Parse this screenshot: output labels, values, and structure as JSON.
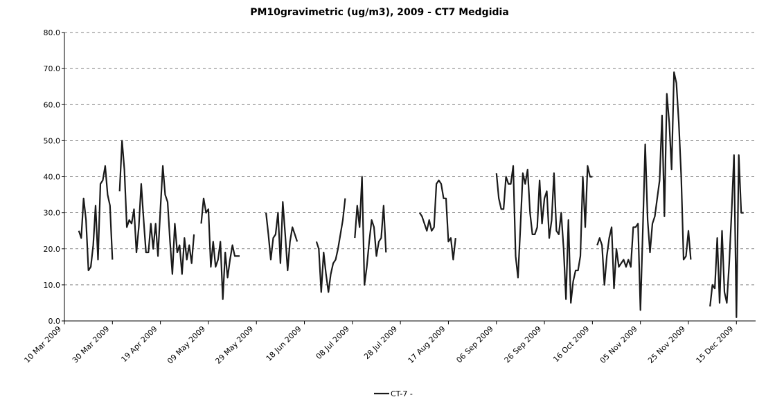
{
  "chart_data": {
    "type": "line",
    "title": "PM10gravimetric (ug/m3), 2009 - CT7 Medgidia",
    "xlim": [
      "2009-03-10",
      "2009-12-23"
    ],
    "xticks": [
      {
        "value": "2009-03-10",
        "label": "10 Mar 2009"
      },
      {
        "value": "2009-03-30",
        "label": "30 Mar 2009"
      },
      {
        "value": "2009-04-19",
        "label": "19 Apr 2009"
      },
      {
        "value": "2009-05-09",
        "label": "09 May 2009"
      },
      {
        "value": "2009-05-29",
        "label": "29 May 2009"
      },
      {
        "value": "2009-06-18",
        "label": "18 Jun 2009"
      },
      {
        "value": "2009-07-08",
        "label": "08 Jul 2009"
      },
      {
        "value": "2009-07-28",
        "label": "28 Jul 2009"
      },
      {
        "value": "2009-08-17",
        "label": "17 Aug 2009"
      },
      {
        "value": "2009-09-06",
        "label": "06 Sep 2009"
      },
      {
        "value": "2009-09-26",
        "label": "26 Sep 2009"
      },
      {
        "value": "2009-10-16",
        "label": "16 Oct 2009"
      },
      {
        "value": "2009-11-05",
        "label": "05 Nov 2009"
      },
      {
        "value": "2009-11-25",
        "label": "25 Nov 2009"
      },
      {
        "value": "2009-12-15",
        "label": "15 Dec 2009"
      }
    ],
    "ylim": [
      0,
      80
    ],
    "yticks": [
      {
        "value": 0,
        "label": "0.0"
      },
      {
        "value": 10,
        "label": "10.0"
      },
      {
        "value": 20,
        "label": "20.0"
      },
      {
        "value": 30,
        "label": "30.0"
      },
      {
        "value": 40,
        "label": "40.0"
      },
      {
        "value": 50,
        "label": "50.0"
      },
      {
        "value": 60,
        "label": "60.0"
      },
      {
        "value": 70,
        "label": "70.0"
      },
      {
        "value": 80,
        "label": "80.0"
      }
    ],
    "grid": true,
    "legend": "bottom",
    "x": [
      "2009-03-16",
      "2009-03-17",
      "2009-03-18",
      "2009-03-19",
      "2009-03-20",
      "2009-03-21",
      "2009-03-22",
      "2009-03-23",
      "2009-03-24",
      "2009-03-25",
      "2009-03-26",
      "2009-03-27",
      "2009-03-28",
      "2009-03-29",
      "2009-03-30",
      "2009-03-31",
      "2009-04-02",
      "2009-04-03",
      "2009-04-04",
      "2009-04-05",
      "2009-04-06",
      "2009-04-07",
      "2009-04-08",
      "2009-04-09",
      "2009-04-10",
      "2009-04-11",
      "2009-04-12",
      "2009-04-13",
      "2009-04-14",
      "2009-04-15",
      "2009-04-16",
      "2009-04-17",
      "2009-04-18",
      "2009-04-19",
      "2009-04-20",
      "2009-04-21",
      "2009-04-22",
      "2009-04-23",
      "2009-04-24",
      "2009-04-25",
      "2009-04-26",
      "2009-04-27",
      "2009-04-28",
      "2009-04-29",
      "2009-04-30",
      "2009-05-01",
      "2009-05-02",
      "2009-05-03",
      "2009-05-04",
      "2009-05-06",
      "2009-05-07",
      "2009-05-08",
      "2009-05-09",
      "2009-05-10",
      "2009-05-11",
      "2009-05-12",
      "2009-05-13",
      "2009-05-14",
      "2009-05-15",
      "2009-05-16",
      "2009-05-17",
      "2009-05-18",
      "2009-05-19",
      "2009-05-20",
      "2009-05-21",
      "2009-05-22",
      "2009-05-23",
      "2009-06-02",
      "2009-06-03",
      "2009-06-04",
      "2009-06-05",
      "2009-06-06",
      "2009-06-07",
      "2009-06-08",
      "2009-06-09",
      "2009-06-10",
      "2009-06-11",
      "2009-06-12",
      "2009-06-13",
      "2009-06-14",
      "2009-06-15",
      "2009-06-16",
      "2009-06-23",
      "2009-06-24",
      "2009-06-25",
      "2009-06-26",
      "2009-06-27",
      "2009-06-28",
      "2009-06-29",
      "2009-06-30",
      "2009-07-01",
      "2009-07-02",
      "2009-07-03",
      "2009-07-04",
      "2009-07-05",
      "2009-07-06",
      "2009-07-09",
      "2009-07-10",
      "2009-07-11",
      "2009-07-12",
      "2009-07-13",
      "2009-07-14",
      "2009-07-15",
      "2009-07-16",
      "2009-07-17",
      "2009-07-18",
      "2009-07-19",
      "2009-07-20",
      "2009-07-21",
      "2009-07-22",
      "2009-07-23",
      "2009-08-05",
      "2009-08-06",
      "2009-08-07",
      "2009-08-08",
      "2009-08-09",
      "2009-08-10",
      "2009-08-11",
      "2009-08-12",
      "2009-08-13",
      "2009-08-14",
      "2009-08-15",
      "2009-08-16",
      "2009-08-17",
      "2009-08-18",
      "2009-08-19",
      "2009-08-20",
      "2009-08-21",
      "2009-09-06",
      "2009-09-07",
      "2009-09-08",
      "2009-09-09",
      "2009-09-10",
      "2009-09-11",
      "2009-09-12",
      "2009-09-13",
      "2009-09-14",
      "2009-09-15",
      "2009-09-16",
      "2009-09-17",
      "2009-09-18",
      "2009-09-19",
      "2009-09-20",
      "2009-09-21",
      "2009-09-22",
      "2009-09-23",
      "2009-09-24",
      "2009-09-25",
      "2009-09-26",
      "2009-09-27",
      "2009-09-28",
      "2009-09-29",
      "2009-09-30",
      "2009-10-01",
      "2009-10-02",
      "2009-10-03",
      "2009-10-04",
      "2009-10-05",
      "2009-10-06",
      "2009-10-07",
      "2009-10-08",
      "2009-10-09",
      "2009-10-10",
      "2009-10-11",
      "2009-10-12",
      "2009-10-13",
      "2009-10-14",
      "2009-10-15",
      "2009-10-16",
      "2009-10-17",
      "2009-10-18",
      "2009-10-19",
      "2009-10-20",
      "2009-10-21",
      "2009-10-22",
      "2009-10-23",
      "2009-10-24",
      "2009-10-25",
      "2009-10-26",
      "2009-10-27",
      "2009-10-28",
      "2009-10-29",
      "2009-10-30",
      "2009-10-31",
      "2009-11-01",
      "2009-11-02",
      "2009-11-03",
      "2009-11-04",
      "2009-11-05",
      "2009-11-06",
      "2009-11-07",
      "2009-11-08",
      "2009-11-09",
      "2009-11-10",
      "2009-11-11",
      "2009-11-12",
      "2009-11-13",
      "2009-11-14",
      "2009-11-15",
      "2009-11-16",
      "2009-11-17",
      "2009-11-18",
      "2009-11-19",
      "2009-11-20",
      "2009-11-21",
      "2009-11-22",
      "2009-11-23",
      "2009-11-24",
      "2009-11-25",
      "2009-11-26",
      "2009-11-27",
      "2009-12-04",
      "2009-12-05",
      "2009-12-06",
      "2009-12-07",
      "2009-12-08",
      "2009-12-09",
      "2009-12-10",
      "2009-12-11",
      "2009-12-12",
      "2009-12-13",
      "2009-12-14",
      "2009-12-15",
      "2009-12-16",
      "2009-12-17",
      "2009-12-18"
    ],
    "series": [
      {
        "name": "CT-7 -",
        "color": "#1a1a1a",
        "values": [
          25,
          23,
          34,
          28,
          14,
          15,
          21,
          32,
          17,
          38,
          39,
          43,
          35,
          32,
          17,
          null,
          36,
          50,
          42,
          26,
          28,
          27,
          31,
          19,
          26,
          38,
          28,
          19,
          19,
          27,
          20,
          27,
          18,
          31,
          43,
          35,
          33,
          22,
          13,
          27,
          19,
          21,
          13,
          23,
          17,
          21,
          16,
          24,
          null,
          27,
          34,
          30,
          31,
          15,
          22,
          15,
          17,
          22,
          6,
          19,
          12,
          17,
          21,
          18,
          18,
          18,
          null,
          30,
          24,
          17,
          23,
          24,
          30,
          16,
          33,
          24,
          14,
          22,
          26,
          24,
          22,
          null,
          22,
          20,
          8,
          19,
          13,
          8,
          13,
          16,
          17,
          20,
          24,
          28,
          34,
          null,
          23,
          32,
          26,
          40,
          10,
          15,
          22,
          28,
          26,
          18,
          22,
          23,
          32,
          19,
          null,
          30,
          29,
          27,
          25,
          28,
          25,
          26,
          38,
          39,
          38,
          34,
          34,
          22,
          23,
          17,
          23,
          null,
          41,
          34,
          31,
          31,
          40,
          38,
          38,
          43,
          18,
          12,
          26,
          41,
          38,
          42,
          30,
          24,
          24,
          26,
          39,
          27,
          34,
          36,
          23,
          28,
          41,
          25,
          24,
          30,
          20,
          6,
          28,
          5,
          11,
          14,
          14,
          18,
          40,
          26,
          43,
          40,
          40,
          null,
          21,
          23,
          21,
          10,
          18,
          23,
          26,
          9,
          20,
          15,
          16,
          17,
          15,
          17,
          15,
          26,
          26,
          27,
          3,
          25,
          49,
          28,
          19,
          27,
          29,
          34,
          39,
          57,
          29,
          63,
          55,
          42,
          69,
          66,
          55,
          40,
          17,
          18,
          25,
          17,
          null,
          4,
          10,
          9,
          23,
          5,
          25,
          8,
          5,
          16,
          30,
          46,
          1,
          46,
          30,
          30
        ]
      }
    ]
  }
}
